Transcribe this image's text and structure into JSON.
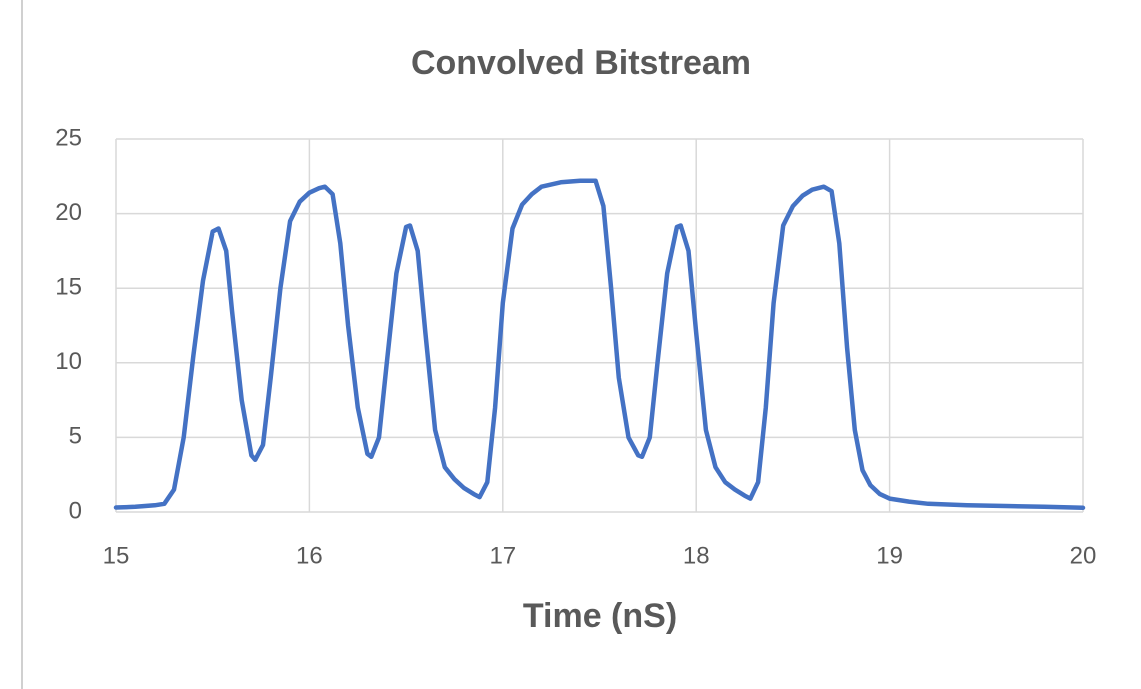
{
  "chart_data": {
    "type": "line",
    "title": "Convolved Bitstream",
    "xlabel": "Time (nS)",
    "xlim": [
      15,
      20
    ],
    "xticks": [
      15,
      16,
      17,
      18,
      19,
      20
    ],
    "ylim": [
      0,
      25
    ],
    "yticks": [
      0,
      5,
      10,
      15,
      20,
      25
    ],
    "grid": true,
    "series": [
      {
        "color": "#4472c4",
        "x": [
          15.0,
          15.1,
          15.2,
          15.25,
          15.3,
          15.35,
          15.4,
          15.45,
          15.5,
          15.53,
          15.57,
          15.6,
          15.65,
          15.7,
          15.72,
          15.76,
          15.8,
          15.85,
          15.9,
          15.95,
          16.0,
          16.05,
          16.08,
          16.12,
          16.16,
          16.2,
          16.25,
          16.3,
          16.32,
          16.36,
          16.4,
          16.45,
          16.5,
          16.52,
          16.56,
          16.6,
          16.65,
          16.7,
          16.75,
          16.8,
          16.85,
          16.88,
          16.92,
          16.96,
          17.0,
          17.05,
          17.1,
          17.15,
          17.2,
          17.3,
          17.4,
          17.48,
          17.52,
          17.56,
          17.6,
          17.65,
          17.7,
          17.72,
          17.76,
          17.8,
          17.85,
          17.9,
          17.92,
          17.96,
          18.0,
          18.05,
          18.1,
          18.15,
          18.2,
          18.25,
          18.28,
          18.32,
          18.36,
          18.4,
          18.45,
          18.5,
          18.55,
          18.6,
          18.66,
          18.7,
          18.74,
          18.78,
          18.82,
          18.86,
          18.9,
          18.95,
          19.0,
          19.1,
          19.2,
          19.4,
          19.6,
          19.8,
          20.0
        ],
        "values": [
          0.3,
          0.35,
          0.45,
          0.55,
          1.5,
          5,
          10.5,
          15.5,
          18.8,
          19.0,
          17.5,
          13.5,
          7.5,
          3.8,
          3.5,
          4.5,
          9,
          15,
          19.5,
          20.8,
          21.4,
          21.7,
          21.8,
          21.3,
          18,
          12.5,
          7,
          3.9,
          3.7,
          5,
          10,
          16,
          19.1,
          19.2,
          17.5,
          12,
          5.5,
          3,
          2.2,
          1.6,
          1.2,
          1.0,
          2,
          7,
          14,
          19,
          20.6,
          21.3,
          21.8,
          22.1,
          22.2,
          22.2,
          20.5,
          15,
          9,
          5,
          3.8,
          3.7,
          5,
          10,
          16,
          19.1,
          19.2,
          17.5,
          12,
          5.5,
          3,
          2,
          1.5,
          1.1,
          0.9,
          2,
          7,
          14,
          19.2,
          20.5,
          21.2,
          21.6,
          21.8,
          21.5,
          18,
          11,
          5.5,
          2.8,
          1.8,
          1.2,
          0.9,
          0.7,
          0.55,
          0.45,
          0.4,
          0.35,
          0.28
        ]
      }
    ]
  }
}
